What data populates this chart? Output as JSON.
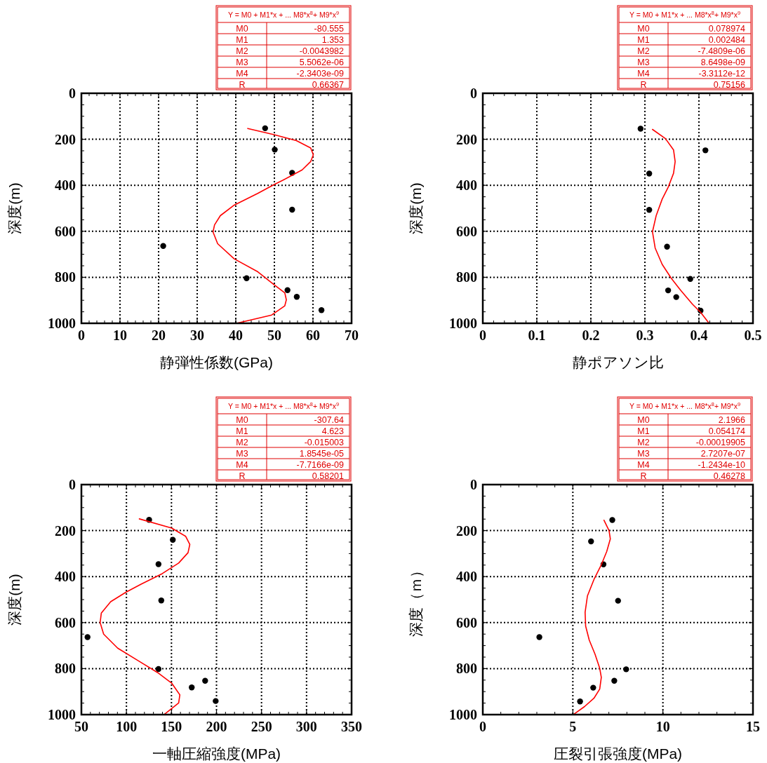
{
  "chart_data": [
    {
      "type": "scatter",
      "xlabel": "静弾性係数(GPa)",
      "ylabel": "深度(m)",
      "xlim": [
        0,
        70
      ],
      "xticks": [
        0,
        10,
        20,
        30,
        40,
        50,
        60,
        70
      ],
      "ylim": [
        1000,
        0
      ],
      "yticks": [
        0,
        200,
        400,
        600,
        800,
        1000
      ],
      "grid": true,
      "annotations": [
        "Y = M0 + M1*x + ... M8*x$^{8}$+ M9*x$^{9}$",
        "M0",
        "-80.555",
        "M1",
        "1.353",
        "M2",
        "-0.0043982",
        "M3",
        "5.5062e-06",
        "M4",
        "-2.3403e-09",
        "R",
        "0.66367"
      ],
      "series": [
        {
          "marker": "circle",
          "color": "#000000",
          "x": [
            47.6,
            50.1,
            54.6,
            54.6,
            21.2,
            42.8,
            53.4,
            55.8,
            62.2
          ],
          "values": [
            152,
            245,
            346,
            506,
            664,
            804,
            856,
            885,
            943
          ]
        },
        {
          "type": "line",
          "color": "#ff0000",
          "x": [
            43.1,
            49.9,
            55.7,
            59.4,
            60.1,
            59.4,
            57.2,
            52.1,
            49.9,
            45.7,
            39.6,
            36.0,
            34.5,
            34.1,
            35.3,
            39.6,
            45.7,
            49.9,
            52.7,
            53.1,
            52.7,
            49.3,
            40.2
          ],
          "values": [
            153,
            180,
            206,
            238,
            267,
            297,
            333,
            379,
            397,
            435,
            486,
            532,
            572,
            603,
            654,
            720,
            776,
            832,
            868,
            898,
            924,
            964,
            1000
          ]
        }
      ]
    },
    {
      "type": "scatter",
      "xlabel": "静ポアソン比",
      "ylabel": "深度(m)",
      "xlim": [
        0,
        0.5
      ],
      "xticks": [
        0,
        0.1,
        0.2,
        0.3,
        0.4,
        0.5
      ],
      "ylim": [
        1000,
        0
      ],
      "yticks": [
        0,
        200,
        400,
        600,
        800,
        1000
      ],
      "grid": true,
      "annotations": [
        "Y = M0 + M1*x + ... M8*x$^{8}$+ M9*x$^{9}$",
        "M0",
        "0.078974",
        "M1",
        "0.002484",
        "M2",
        "-7.4809e-06",
        "M3",
        "8.6498e-09",
        "M4",
        "-3.3112e-12",
        "R",
        "0.75156"
      ],
      "series": [
        {
          "marker": "circle",
          "color": "#000000",
          "x": [
            0.292,
            0.412,
            0.308,
            0.308,
            0.341,
            0.384,
            0.343,
            0.358,
            0.403
          ],
          "values": [
            154,
            248,
            349,
            507,
            667,
            807,
            857,
            886,
            945
          ]
        },
        {
          "type": "line",
          "color": "#ff0000",
          "x": [
            0.314,
            0.338,
            0.353,
            0.356,
            0.353,
            0.343,
            0.332,
            0.321,
            0.314,
            0.319,
            0.332,
            0.349,
            0.366,
            0.388,
            0.403,
            0.418
          ],
          "values": [
            157,
            197,
            246,
            297,
            348,
            409,
            460,
            531,
            602,
            673,
            744,
            805,
            856,
            917,
            952,
            998
          ]
        }
      ]
    },
    {
      "type": "scatter",
      "xlabel": "一軸圧縮強度(MPa)",
      "ylabel": "深度(m)",
      "xlim": [
        50,
        350
      ],
      "xticks": [
        50,
        100,
        150,
        200,
        250,
        300,
        350
      ],
      "ylim": [
        1000,
        0
      ],
      "yticks": [
        0,
        200,
        400,
        600,
        800,
        1000
      ],
      "grid": true,
      "annotations": [
        "Y = M0 + M1*x + ... M8*x$^{8}$+ M9*x$^{9}$",
        "M0",
        "-307.64",
        "M1",
        "4.623",
        "M2",
        "-0.015003",
        "M3",
        "1.8545e-05",
        "M4",
        "-7.7166e-09",
        "R",
        "0.58201"
      ],
      "series": [
        {
          "marker": "circle",
          "color": "#000000",
          "x": [
            125.2,
            151.5,
            135.6,
            138.7,
            56.8,
            135.6,
            187.4,
            172.5,
            199.1
          ],
          "values": [
            153,
            240,
            346,
            504,
            663,
            802,
            853,
            882,
            941
          ]
        },
        {
          "type": "line",
          "color": "#ff0000",
          "x": [
            114.3,
            150.2,
            165.8,
            170.4,
            168.4,
            158.0,
            139.8,
            116.3,
            99.4,
            82.5,
            72.1,
            70.8,
            74.7,
            90.3,
            113.7,
            134.5,
            150.2,
            159.3,
            158.0,
            142.4
          ],
          "values": [
            149,
            189,
            225,
            260,
            296,
            341,
            387,
            433,
            468,
            509,
            559,
            600,
            650,
            711,
            767,
            817,
            863,
            914,
            949,
            998
          ]
        }
      ]
    },
    {
      "type": "scatter",
      "xlabel": "圧裂引張強度(MPa)",
      "ylabel": "深度（ｍ）",
      "xlim": [
        0,
        15
      ],
      "xticks": [
        0,
        5,
        10,
        15
      ],
      "ylim": [
        1000,
        0
      ],
      "yticks": [
        0,
        200,
        400,
        600,
        800,
        1000
      ],
      "grid": true,
      "annotations": [
        "Y = M0 + M1*x + ... M8*x$^{8}$+ M9*x$^{9}$",
        "M0",
        "2.1966",
        "M1",
        "0.054174",
        "M2",
        "-0.00019905",
        "M3",
        "2.7207e-07",
        "M4",
        "-1.2434e-10",
        "R",
        "0.46278"
      ],
      "series": [
        {
          "marker": "circle",
          "color": "#000000",
          "x": [
            7.19,
            6.01,
            6.7,
            7.51,
            3.14,
            7.96,
            7.3,
            6.13,
            5.4
          ],
          "values": [
            154,
            247,
            347,
            505,
            663,
            803,
            853,
            883,
            943
          ]
        },
        {
          "type": "line",
          "color": "#ff0000",
          "x": [
            6.73,
            7.01,
            7.08,
            6.88,
            6.56,
            6.17,
            5.81,
            5.68,
            5.71,
            5.91,
            6.23,
            6.49,
            6.58,
            6.49,
            6.17,
            5.65,
            5.06
          ],
          "values": [
            155,
            200,
            236,
            291,
            352,
            413,
            484,
            555,
            615,
            676,
            737,
            798,
            838,
            889,
            929,
            965,
            998
          ]
        }
      ]
    }
  ]
}
